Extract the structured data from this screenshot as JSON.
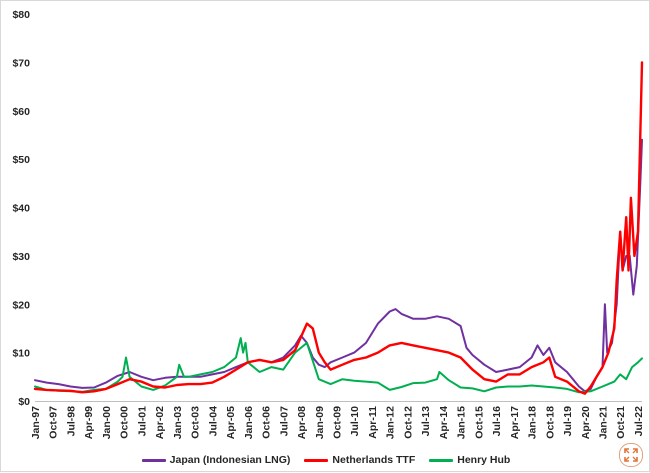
{
  "chart_data": {
    "type": "line",
    "title": "",
    "xlabel": "",
    "ylabel": "",
    "ylim": [
      0,
      80
    ],
    "y_ticks": [
      "$0",
      "$10",
      "$20",
      "$30",
      "$40",
      "$50",
      "$60",
      "$70",
      "$80"
    ],
    "y_tick_values": [
      0,
      10,
      20,
      30,
      40,
      50,
      60,
      70,
      80
    ],
    "x_ticks": [
      "Jan-97",
      "Oct-97",
      "Jul-98",
      "Apr-99",
      "Jan-00",
      "Oct-00",
      "Jul-01",
      "Apr-02",
      "Jan-03",
      "Oct-03",
      "Jul-04",
      "Apr-05",
      "Jan-06",
      "Oct-06",
      "Jul-07",
      "Apr-08",
      "Jan-09",
      "Oct-09",
      "Jul-10",
      "Apr-11",
      "Jan-12",
      "Oct-12",
      "Jul-13",
      "Apr-14",
      "Jan-15",
      "Oct-15",
      "Jul-16",
      "Apr-17",
      "Jan-18",
      "Oct-18",
      "Jul-19",
      "Apr-20",
      "Jan-21",
      "Oct-21",
      "Jul-22"
    ],
    "x_tick_values": [
      1997.0,
      1997.75,
      1998.5,
      1999.25,
      2000.0,
      2000.75,
      2001.5,
      2002.25,
      2003.0,
      2003.75,
      2004.5,
      2005.25,
      2006.0,
      2006.75,
      2007.5,
      2008.25,
      2009.0,
      2009.75,
      2010.5,
      2011.25,
      2012.0,
      2012.75,
      2013.5,
      2014.25,
      2015.0,
      2015.75,
      2016.5,
      2017.25,
      2018.0,
      2018.75,
      2019.5,
      2020.25,
      2021.0,
      2021.75,
      2022.5
    ],
    "x_range": [
      1997.0,
      2022.67
    ],
    "grid": false,
    "legend_position": "bottom",
    "series": [
      {
        "name": "Japan (Indonesian LNG)",
        "color": "#7030A0",
        "x": [
          1997,
          1997.5,
          1998,
          1998.5,
          1999,
          1999.5,
          2000,
          2000.5,
          2001,
          2001.5,
          2002,
          2002.5,
          2003,
          2003.5,
          2004,
          2004.5,
          2005,
          2005.5,
          2006,
          2006.5,
          2007,
          2007.5,
          2008,
          2008.25,
          2008.5,
          2008.75,
          2009,
          2009.25,
          2009.5,
          2010,
          2010.5,
          2011,
          2011.5,
          2012,
          2012.25,
          2012.5,
          2012.75,
          2013,
          2013.5,
          2014,
          2014.5,
          2015,
          2015.25,
          2015.5,
          2016,
          2016.5,
          2017,
          2017.5,
          2018,
          2018.25,
          2018.5,
          2018.75,
          2019,
          2019.5,
          2020,
          2020.25,
          2020.5,
          2020.75,
          2021,
          2021.1,
          2021.2,
          2021.4,
          2021.6,
          2021.75,
          2021.85,
          2022,
          2022.15,
          2022.3,
          2022.45,
          2022.6,
          2022.67
        ],
        "values": [
          4.3,
          3.8,
          3.5,
          3.0,
          2.7,
          2.8,
          3.8,
          5.2,
          6.0,
          5.0,
          4.3,
          4.8,
          5.0,
          5.0,
          5.0,
          5.5,
          6.0,
          7.0,
          8.0,
          8.5,
          8.0,
          9.0,
          11.5,
          13.5,
          12.0,
          9.0,
          7.5,
          7.0,
          8.0,
          9.0,
          10.0,
          12.0,
          16.0,
          18.5,
          19.0,
          18.0,
          17.5,
          17.0,
          17.0,
          17.5,
          17.0,
          15.5,
          11.0,
          9.5,
          7.5,
          6.0,
          6.5,
          7.0,
          9.0,
          11.5,
          9.5,
          11.0,
          8.0,
          6.0,
          3.0,
          2.0,
          2.5,
          5.0,
          7.0,
          20.0,
          10.0,
          12.0,
          20.0,
          35.0,
          27.0,
          30.0,
          30.0,
          22.0,
          28.0,
          45.0,
          54.0
        ]
      },
      {
        "name": "Netherlands TTF",
        "color": "#FF0000",
        "x": [
          1997,
          1997.5,
          1998,
          1998.5,
          1999,
          1999.5,
          2000,
          2000.5,
          2001,
          2001.5,
          2002,
          2002.5,
          2003,
          2003.5,
          2004,
          2004.5,
          2005,
          2005.5,
          2006,
          2006.5,
          2007,
          2007.5,
          2008,
          2008.5,
          2008.75,
          2009,
          2009.25,
          2009.5,
          2010,
          2010.5,
          2011,
          2011.5,
          2012,
          2012.5,
          2013,
          2013.5,
          2014,
          2014.5,
          2015,
          2015.5,
          2016,
          2016.5,
          2017,
          2017.5,
          2018,
          2018.5,
          2018.75,
          2019,
          2019.5,
          2020,
          2020.25,
          2020.5,
          2020.75,
          2021,
          2021.25,
          2021.5,
          2021.6,
          2021.75,
          2021.85,
          2022,
          2022.1,
          2022.2,
          2022.35,
          2022.5,
          2022.6,
          2022.67
        ],
        "values": [
          2.5,
          2.3,
          2.2,
          2.1,
          1.8,
          2.0,
          2.5,
          3.5,
          4.5,
          4.0,
          3.0,
          2.8,
          3.3,
          3.5,
          3.5,
          3.8,
          5.0,
          6.5,
          8.0,
          8.5,
          8.0,
          8.5,
          10.5,
          16.0,
          15.0,
          10.0,
          8.0,
          6.5,
          7.5,
          8.5,
          9.0,
          10.0,
          11.5,
          12.0,
          11.5,
          11.0,
          10.5,
          10.0,
          9.0,
          6.5,
          4.5,
          4.0,
          5.5,
          5.5,
          7.0,
          8.0,
          9.0,
          5.0,
          4.0,
          2.0,
          1.5,
          3.0,
          5.0,
          7.0,
          10.0,
          15.0,
          25.0,
          35.0,
          27.0,
          38.0,
          27.0,
          42.0,
          30.0,
          35.0,
          55.0,
          70.0
        ]
      },
      {
        "name": "Henry Hub",
        "color": "#00B050",
        "x": [
          1997,
          1997.5,
          1998,
          1998.5,
          1999,
          1999.5,
          2000,
          2000.5,
          2000.7,
          2000.85,
          2001,
          2001.5,
          2002,
          2002.5,
          2003,
          2003.1,
          2003.3,
          2003.5,
          2004,
          2004.5,
          2005,
          2005.5,
          2005.7,
          2005.8,
          2005.9,
          2006,
          2006.5,
          2007,
          2007.5,
          2008,
          2008.5,
          2009,
          2009.5,
          2010,
          2010.5,
          2011,
          2011.5,
          2012,
          2012.5,
          2013,
          2013.5,
          2014,
          2014.1,
          2014.5,
          2015,
          2015.5,
          2016,
          2016.5,
          2017,
          2017.5,
          2018,
          2018.5,
          2019,
          2019.5,
          2020,
          2020.5,
          2021,
          2021.25,
          2021.5,
          2021.75,
          2022,
          2022.25,
          2022.5,
          2022.67
        ],
        "values": [
          3.0,
          2.3,
          2.1,
          2.0,
          1.9,
          2.3,
          2.5,
          4.0,
          5.0,
          9.0,
          5.0,
          3.0,
          2.3,
          3.2,
          5.0,
          7.5,
          5.0,
          5.0,
          5.5,
          6.0,
          7.0,
          9.0,
          13.0,
          10.0,
          12.0,
          8.0,
          6.0,
          7.0,
          6.5,
          10.0,
          12.0,
          4.5,
          3.5,
          4.5,
          4.2,
          4.0,
          3.8,
          2.3,
          2.9,
          3.7,
          3.8,
          4.5,
          6.0,
          4.3,
          2.8,
          2.6,
          2.0,
          2.8,
          3.0,
          3.0,
          3.2,
          3.0,
          2.8,
          2.5,
          1.8,
          2.0,
          3.0,
          3.5,
          4.0,
          5.5,
          4.5,
          7.0,
          8.0,
          8.8
        ]
      }
    ]
  },
  "legend": {
    "items": [
      {
        "label": "Japan (Indonesian LNG)",
        "color": "#7030A0"
      },
      {
        "label": "Netherlands TTF",
        "color": "#FF0000"
      },
      {
        "label": "Henry Hub",
        "color": "#00B050"
      }
    ]
  },
  "expand_icon": {
    "name": "expand-icon",
    "color": "#E0733A"
  }
}
